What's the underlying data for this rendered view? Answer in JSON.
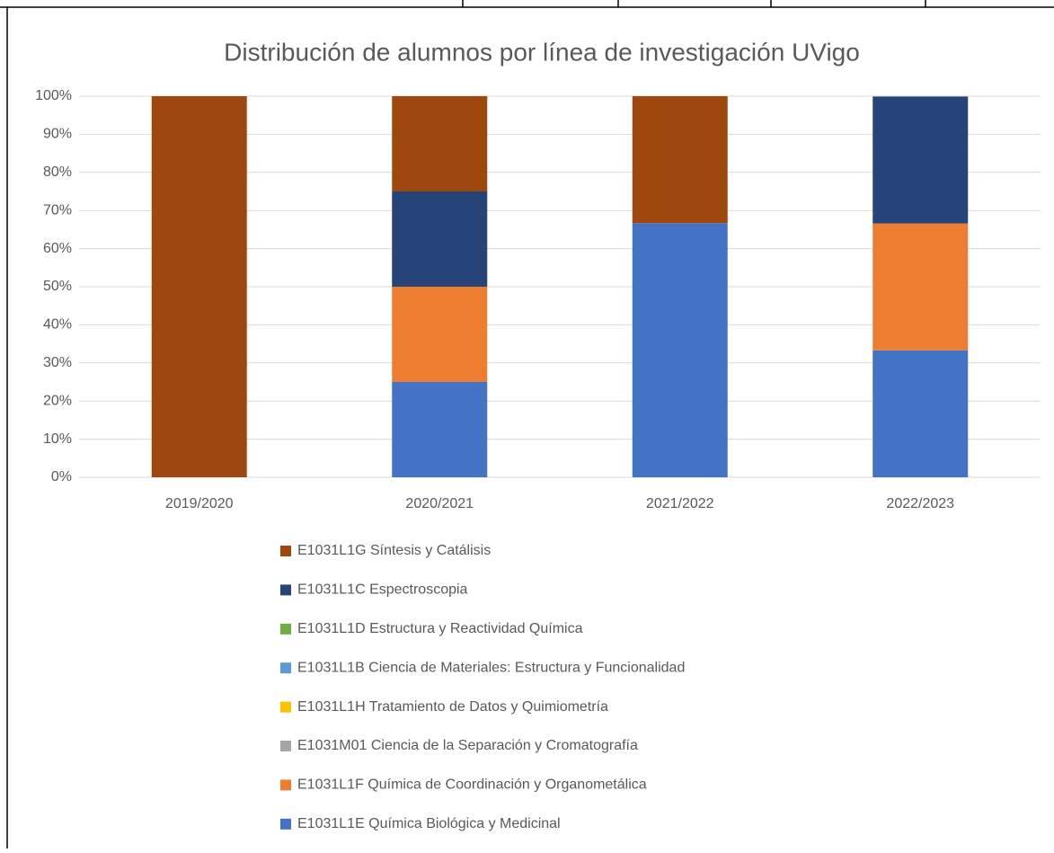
{
  "chart_data": {
    "type": "bar",
    "stacked": true,
    "title": "Distribución de alumnos por línea de investigación UVigo",
    "categories": [
      "2019/2020",
      "2020/2021",
      "2021/2022",
      "2022/2023"
    ],
    "series": [
      {
        "name": "E1031L1G Síntesis y Catálisis",
        "color": "#9e480e",
        "values": [
          100,
          25,
          33.3,
          0
        ]
      },
      {
        "name": "E1031L1C Espectroscopia",
        "color": "#264478",
        "values": [
          0,
          25,
          0,
          33.3
        ]
      },
      {
        "name": "E1031L1D Estructura y Reactividad Química",
        "color": "#70ad47",
        "values": [
          0,
          0,
          0,
          0
        ]
      },
      {
        "name": "E1031L1B Ciencia de Materiales: Estructura y Funcionalidad",
        "color": "#5b9bd5",
        "values": [
          0,
          0,
          0,
          0
        ]
      },
      {
        "name": "E1031L1H Tratamiento de Datos y Quimiometría",
        "color": "#ffc000",
        "values": [
          0,
          0,
          0,
          0
        ]
      },
      {
        "name": "E1031M01 Ciencia de la Separación y Cromatografía",
        "color": "#a5a5a5",
        "values": [
          0,
          0,
          0,
          0
        ]
      },
      {
        "name": "E1031L1F Química de Coordinación y Organometálica",
        "color": "#ed7d31",
        "values": [
          0,
          25,
          0,
          33.3
        ]
      },
      {
        "name": "E1031L1E Química Biológica y Medicinal",
        "color": "#4472c4",
        "values": [
          0,
          25,
          66.7,
          33.3
        ]
      }
    ],
    "ylim": [
      0,
      100
    ],
    "yticks": [
      {
        "value": 0,
        "label": "0%"
      },
      {
        "value": 10,
        "label": "10%"
      },
      {
        "value": 20,
        "label": "20%"
      },
      {
        "value": 30,
        "label": "30%"
      },
      {
        "value": 40,
        "label": "40%"
      },
      {
        "value": 50,
        "label": "50%"
      },
      {
        "value": 60,
        "label": "60%"
      },
      {
        "value": 70,
        "label": "70%"
      },
      {
        "value": 80,
        "label": "80%"
      },
      {
        "value": 90,
        "label": "90%"
      },
      {
        "value": 100,
        "label": "100%"
      }
    ],
    "grid": true,
    "legend": "bottom"
  }
}
